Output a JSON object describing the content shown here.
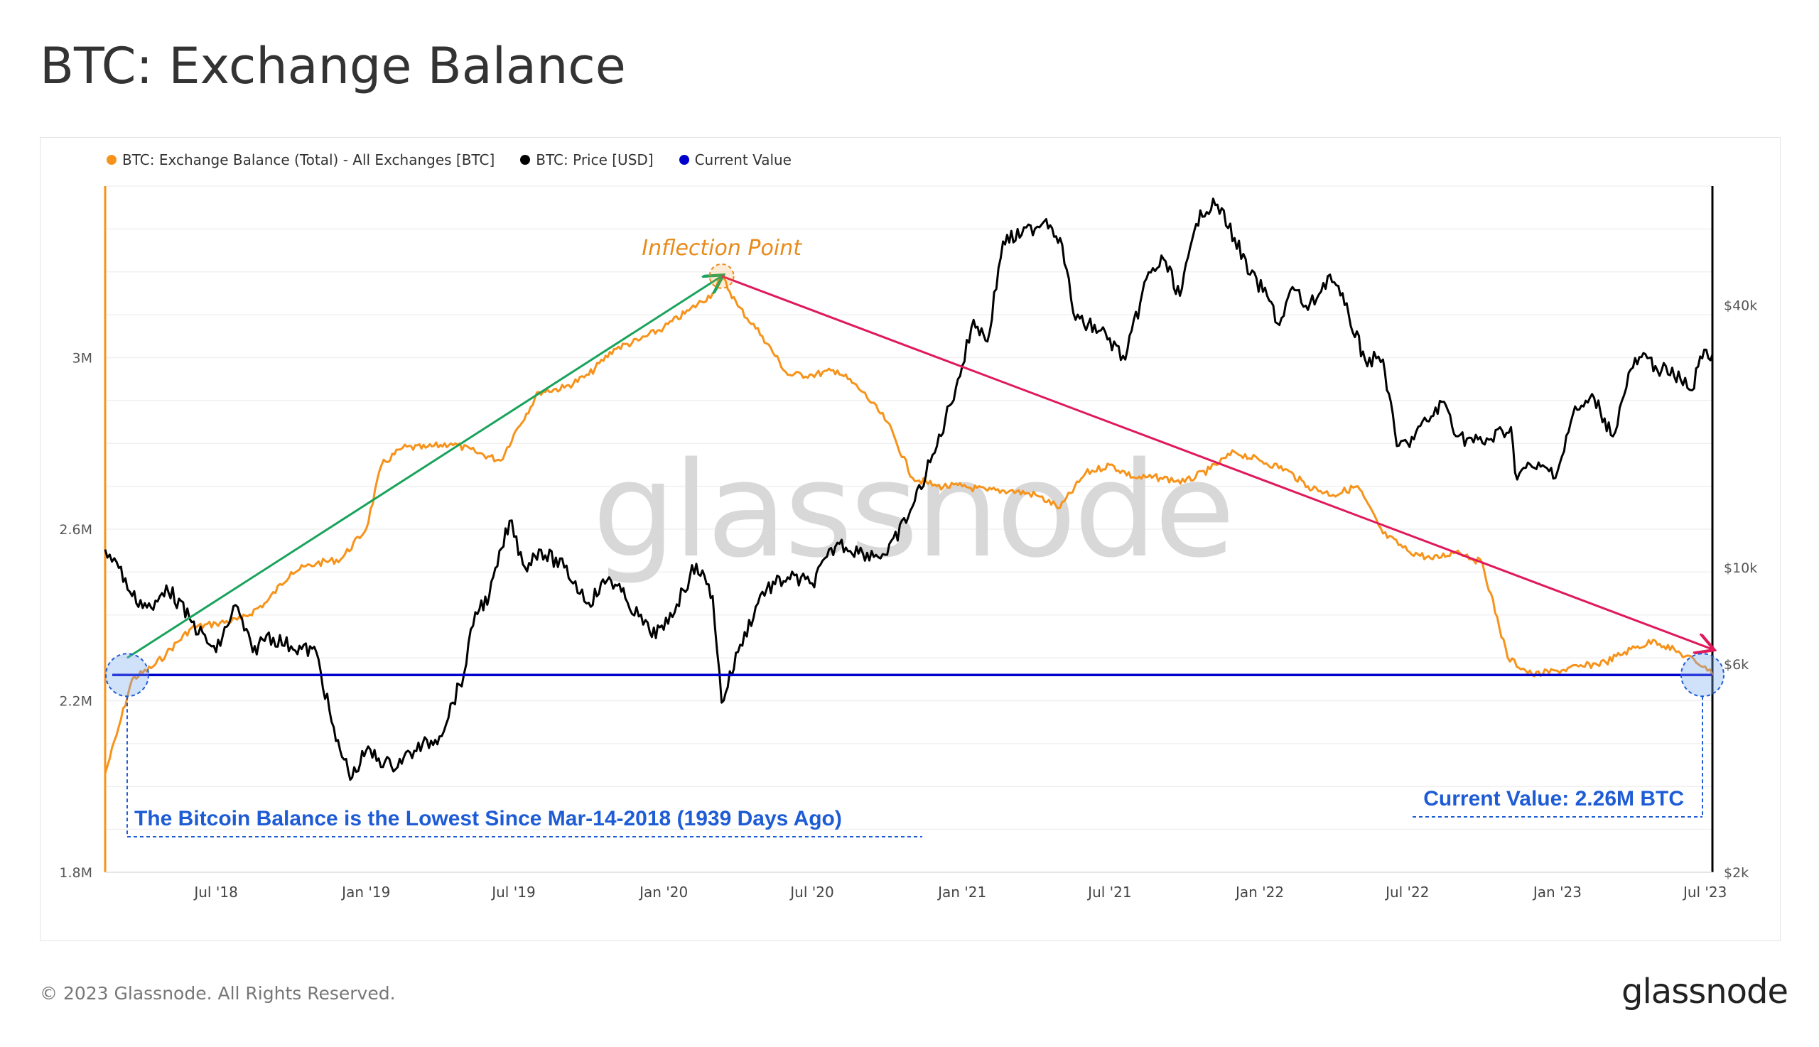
{
  "title": "BTC: Exchange Balance",
  "legend": [
    {
      "label": "BTC: Exchange Balance (Total) - All Exchanges [BTC]",
      "color": "#f7931a"
    },
    {
      "label": "BTC: Price [USD]",
      "color": "#000000"
    },
    {
      "label": "Current Value",
      "color": "#0000cc"
    }
  ],
  "watermark": "glassnode",
  "annotations": {
    "inflection": "Inflection Point",
    "lowest": "The Bitcoin Balance is the Lowest Since Mar-14-2018 (1939 Days Ago)",
    "current": "Current Value: 2.26M BTC"
  },
  "footer": {
    "copyright": "© 2023 Glassnode. All Rights Reserved.",
    "logo": "glassnode"
  },
  "colors": {
    "balance": "#f7931a",
    "price": "#000000",
    "current": "#0000cc",
    "up_arrow": "#1aa35c",
    "down_arrow": "#e0195a",
    "annotation_blue": "#1e5cd6",
    "annotation_orange": "#e88a1a"
  },
  "chart_data": {
    "type": "line",
    "x_range": [
      "2018-02-15",
      "2023-07-10"
    ],
    "x_ticks": [
      {
        "date": "2018-07-01",
        "label": "Jul '18"
      },
      {
        "date": "2019-01-01",
        "label": "Jan '19"
      },
      {
        "date": "2019-07-01",
        "label": "Jul '19"
      },
      {
        "date": "2020-01-01",
        "label": "Jan '20"
      },
      {
        "date": "2020-07-01",
        "label": "Jul '20"
      },
      {
        "date": "2021-01-01",
        "label": "Jan '21"
      },
      {
        "date": "2021-07-01",
        "label": "Jul '21"
      },
      {
        "date": "2022-01-01",
        "label": "Jan '22"
      },
      {
        "date": "2022-07-01",
        "label": "Jul '22"
      },
      {
        "date": "2023-01-01",
        "label": "Jan '23"
      },
      {
        "date": "2023-07-01",
        "label": "Jul '23"
      }
    ],
    "y_left": {
      "scale": "linear",
      "range": [
        1800000,
        3400000
      ],
      "ticks": [
        {
          "value": 1800000,
          "label": "1.8M"
        },
        {
          "value": 2200000,
          "label": "2.2M"
        },
        {
          "value": 2600000,
          "label": "2.6M"
        },
        {
          "value": 3000000,
          "label": "3M"
        }
      ]
    },
    "y_right": {
      "scale": "log",
      "range": [
        2000,
        75000
      ],
      "ticks": [
        {
          "value": 2000,
          "label": "$2k"
        },
        {
          "value": 6000,
          "label": "$6k"
        },
        {
          "value": 10000,
          "label": "$10k"
        },
        {
          "value": 40000,
          "label": "$40k"
        }
      ]
    },
    "series": [
      {
        "name": "BTC: Exchange Balance (Total) - All Exchanges [BTC]",
        "axis": "left",
        "points": [
          [
            "2018-02-15",
            2030000
          ],
          [
            "2018-03-01",
            2120000
          ],
          [
            "2018-03-20",
            2250000
          ],
          [
            "2018-04-15",
            2280000
          ],
          [
            "2018-05-01",
            2310000
          ],
          [
            "2018-06-01",
            2370000
          ],
          [
            "2018-07-01",
            2380000
          ],
          [
            "2018-08-01",
            2390000
          ],
          [
            "2018-09-01",
            2430000
          ],
          [
            "2018-10-01",
            2500000
          ],
          [
            "2018-11-01",
            2520000
          ],
          [
            "2018-12-01",
            2530000
          ],
          [
            "2019-01-01",
            2600000
          ],
          [
            "2019-01-20",
            2750000
          ],
          [
            "2019-02-15",
            2790000
          ],
          [
            "2019-03-15",
            2790000
          ],
          [
            "2019-04-15",
            2800000
          ],
          [
            "2019-05-15",
            2780000
          ],
          [
            "2019-06-15",
            2760000
          ],
          [
            "2019-07-01",
            2820000
          ],
          [
            "2019-08-01",
            2920000
          ],
          [
            "2019-09-01",
            2930000
          ],
          [
            "2019-10-01",
            2960000
          ],
          [
            "2019-11-01",
            3020000
          ],
          [
            "2019-12-01",
            3040000
          ],
          [
            "2020-01-01",
            3070000
          ],
          [
            "2020-02-01",
            3110000
          ],
          [
            "2020-03-01",
            3150000
          ],
          [
            "2020-03-12",
            3190000
          ],
          [
            "2020-04-01",
            3120000
          ],
          [
            "2020-05-01",
            3050000
          ],
          [
            "2020-06-01",
            2960000
          ],
          [
            "2020-07-01",
            2960000
          ],
          [
            "2020-08-01",
            2970000
          ],
          [
            "2020-09-01",
            2920000
          ],
          [
            "2020-10-01",
            2850000
          ],
          [
            "2020-11-01",
            2720000
          ],
          [
            "2020-12-01",
            2700000
          ],
          [
            "2021-01-01",
            2700000
          ],
          [
            "2021-02-01",
            2690000
          ],
          [
            "2021-03-01",
            2690000
          ],
          [
            "2021-04-01",
            2680000
          ],
          [
            "2021-05-01",
            2650000
          ],
          [
            "2021-06-01",
            2730000
          ],
          [
            "2021-07-01",
            2750000
          ],
          [
            "2021-08-01",
            2720000
          ],
          [
            "2021-09-01",
            2720000
          ],
          [
            "2021-10-01",
            2710000
          ],
          [
            "2021-11-01",
            2740000
          ],
          [
            "2021-12-01",
            2780000
          ],
          [
            "2022-01-01",
            2760000
          ],
          [
            "2022-02-01",
            2740000
          ],
          [
            "2022-03-01",
            2700000
          ],
          [
            "2022-04-01",
            2680000
          ],
          [
            "2022-05-01",
            2700000
          ],
          [
            "2022-06-01",
            2590000
          ],
          [
            "2022-07-01",
            2550000
          ],
          [
            "2022-08-01",
            2530000
          ],
          [
            "2022-09-01",
            2550000
          ],
          [
            "2022-10-01",
            2520000
          ],
          [
            "2022-11-01",
            2300000
          ],
          [
            "2022-12-01",
            2260000
          ],
          [
            "2023-01-01",
            2270000
          ],
          [
            "2023-02-01",
            2280000
          ],
          [
            "2023-03-01",
            2290000
          ],
          [
            "2023-04-01",
            2320000
          ],
          [
            "2023-05-01",
            2340000
          ],
          [
            "2023-06-01",
            2310000
          ],
          [
            "2023-07-01",
            2280000
          ],
          [
            "2023-07-10",
            2260000
          ]
        ]
      },
      {
        "name": "BTC: Price [USD]",
        "axis": "right",
        "points": [
          [
            "2018-02-15",
            11000
          ],
          [
            "2018-03-01",
            10300
          ],
          [
            "2018-03-20",
            8600
          ],
          [
            "2018-04-15",
            8000
          ],
          [
            "2018-05-01",
            9100
          ],
          [
            "2018-06-01",
            7500
          ],
          [
            "2018-07-01",
            6400
          ],
          [
            "2018-07-25",
            8200
          ],
          [
            "2018-08-15",
            6400
          ],
          [
            "2018-09-01",
            7000
          ],
          [
            "2018-10-01",
            6600
          ],
          [
            "2018-11-01",
            6400
          ],
          [
            "2018-11-25",
            4000
          ],
          [
            "2018-12-15",
            3300
          ],
          [
            "2019-01-01",
            3800
          ],
          [
            "2019-02-01",
            3500
          ],
          [
            "2019-03-01",
            3800
          ],
          [
            "2019-04-01",
            4100
          ],
          [
            "2019-05-01",
            5700
          ],
          [
            "2019-05-15",
            7900
          ],
          [
            "2019-06-01",
            8600
          ],
          [
            "2019-06-26",
            12800
          ],
          [
            "2019-07-15",
            10000
          ],
          [
            "2019-08-01",
            11000
          ],
          [
            "2019-09-01",
            10000
          ],
          [
            "2019-10-01",
            8300
          ],
          [
            "2019-10-26",
            9500
          ],
          [
            "2019-11-15",
            8500
          ],
          [
            "2019-12-15",
            7100
          ],
          [
            "2020-01-01",
            7200
          ],
          [
            "2020-02-10",
            10200
          ],
          [
            "2020-03-01",
            8600
          ],
          [
            "2020-03-12",
            4900
          ],
          [
            "2020-04-01",
            6400
          ],
          [
            "2020-05-01",
            8800
          ],
          [
            "2020-06-01",
            9500
          ],
          [
            "2020-07-01",
            9200
          ],
          [
            "2020-08-01",
            11400
          ],
          [
            "2020-09-01",
            10800
          ],
          [
            "2020-10-01",
            10700
          ],
          [
            "2020-11-01",
            13800
          ],
          [
            "2020-12-01",
            19000
          ],
          [
            "2021-01-01",
            29000
          ],
          [
            "2021-01-15",
            37000
          ],
          [
            "2021-02-01",
            33000
          ],
          [
            "2021-02-20",
            56000
          ],
          [
            "2021-03-15",
            58000
          ],
          [
            "2021-04-14",
            63000
          ],
          [
            "2021-05-01",
            57000
          ],
          [
            "2021-05-20",
            37000
          ],
          [
            "2021-06-20",
            35000
          ],
          [
            "2021-07-20",
            30000
          ],
          [
            "2021-08-15",
            46000
          ],
          [
            "2021-09-05",
            51000
          ],
          [
            "2021-09-25",
            42000
          ],
          [
            "2021-10-20",
            66000
          ],
          [
            "2021-11-10",
            68000
          ],
          [
            "2021-12-01",
            57000
          ],
          [
            "2021-12-20",
            47000
          ],
          [
            "2022-01-10",
            42000
          ],
          [
            "2022-01-25",
            36000
          ],
          [
            "2022-02-10",
            44000
          ],
          [
            "2022-03-01",
            39000
          ],
          [
            "2022-03-28",
            47000
          ],
          [
            "2022-04-15",
            40000
          ],
          [
            "2022-05-10",
            30000
          ],
          [
            "2022-06-01",
            30000
          ],
          [
            "2022-06-18",
            19000
          ],
          [
            "2022-07-01",
            19300
          ],
          [
            "2022-08-15",
            24000
          ],
          [
            "2022-09-01",
            20000
          ],
          [
            "2022-10-01",
            19300
          ],
          [
            "2022-11-05",
            21000
          ],
          [
            "2022-11-10",
            16500
          ],
          [
            "2022-12-01",
            17000
          ],
          [
            "2023-01-01",
            16600
          ],
          [
            "2023-01-20",
            22500
          ],
          [
            "2023-02-15",
            24500
          ],
          [
            "2023-03-10",
            20000
          ],
          [
            "2023-04-01",
            28500
          ],
          [
            "2023-04-14",
            30400
          ],
          [
            "2023-05-01",
            29000
          ],
          [
            "2023-06-01",
            27000
          ],
          [
            "2023-06-15",
            25500
          ],
          [
            "2023-06-25",
            30500
          ],
          [
            "2023-07-10",
            30800
          ]
        ]
      },
      {
        "name": "Current Value",
        "axis": "left",
        "value": 2260000
      }
    ],
    "inflection": {
      "date": "2020-03-12",
      "value": 3190000
    },
    "lowest_match": {
      "date": "2018-03-14",
      "value": 2260000
    },
    "current_point": {
      "date": "2023-07-10",
      "value": 2260000
    },
    "up_arrow": {
      "from": [
        "2018-03-14",
        2300000
      ],
      "to": [
        "2020-03-12",
        3190000
      ]
    },
    "down_arrow": {
      "from": [
        "2020-03-12",
        3190000
      ],
      "to": [
        "2023-07-10",
        2320000
      ]
    }
  }
}
